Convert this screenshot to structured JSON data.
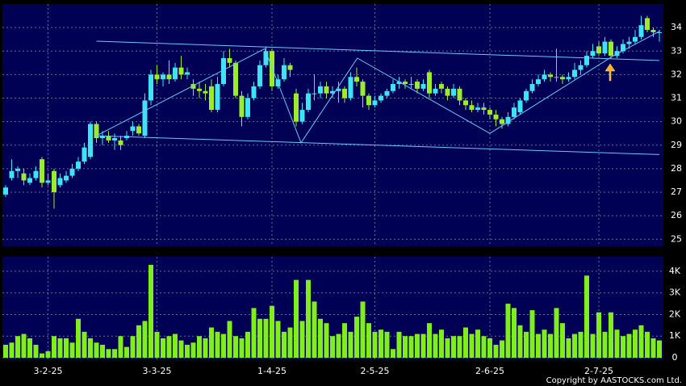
{
  "chart_data": {
    "type": "candlestick",
    "up_color": "#3fe4f4",
    "down_color": "#9aec2c",
    "volume_color": "#80ee1c",
    "line_color": "#6ac8ff",
    "grid": true,
    "open": [
      26.9,
      27.6,
      27.9,
      27.8,
      27.4,
      27.6,
      28.4,
      27.4,
      27.9,
      27.3,
      27.5,
      27.7,
      28.0,
      28.3,
      28.5,
      29.9,
      29.3,
      29.4,
      29.2,
      29.2,
      29.3,
      29.6,
      29.8,
      29.4,
      30.9,
      32.0,
      31.8,
      32.0,
      31.8,
      32.3,
      32.0,
      31.6,
      31.4,
      31.3,
      31.5,
      30.5,
      31.6,
      32.7,
      32.5,
      31.1,
      30.2,
      31.0,
      31.5,
      32.4,
      33.0,
      31.5,
      31.8,
      32.4,
      31.2,
      30.0,
      30.5,
      31.2,
      31.2,
      31.5,
      31.2,
      31.3,
      31.4,
      31.0,
      31.9,
      31.7,
      31.1,
      30.7,
      30.9,
      31.1,
      31.3,
      31.6,
      31.7,
      31.6,
      31.7,
      31.4,
      32.1,
      31.2,
      31.6,
      31.4,
      31.1,
      31.4,
      30.9,
      30.7,
      30.5,
      30.6,
      30.5,
      30.3,
      30.1,
      29.9,
      30.2,
      30.4,
      30.9,
      31.3,
      31.6,
      31.8,
      32.0,
      31.9,
      31.9,
      31.8,
      31.9,
      32.2,
      32.4,
      32.8,
      33.2,
      32.9,
      33.4,
      32.8,
      33.0,
      33.3,
      33.4,
      33.6,
      34.4,
      33.9,
      33.8
    ],
    "high": [
      27.3,
      28.4,
      28.1,
      28.0,
      27.8,
      28.1,
      28.5,
      27.8,
      28.0,
      27.8,
      27.9,
      28.2,
      28.5,
      29.1,
      30.0,
      30.0,
      29.6,
      29.6,
      29.5,
      29.4,
      29.6,
      30.0,
      29.9,
      31.2,
      32.2,
      32.4,
      32.1,
      32.6,
      32.5,
      32.8,
      32.3,
      31.8,
      31.7,
      31.6,
      31.8,
      31.9,
      33.0,
      33.1,
      32.6,
      31.3,
      31.2,
      31.7,
      32.6,
      33.2,
      33.1,
      32.0,
      32.7,
      32.5,
      31.4,
      30.8,
      31.4,
      32.0,
      31.7,
      31.7,
      31.5,
      31.7,
      31.5,
      32.1,
      32.3,
      31.8,
      31.2,
      31.1,
      31.2,
      31.4,
      31.8,
      31.9,
      31.8,
      31.9,
      31.8,
      31.8,
      32.2,
      31.6,
      31.7,
      31.5,
      31.6,
      31.5,
      31.0,
      30.9,
      30.8,
      30.8,
      30.6,
      30.5,
      30.2,
      30.4,
      30.8,
      31.0,
      31.4,
      31.8,
      32.0,
      32.2,
      32.1,
      33.1,
      32.0,
      32.1,
      32.5,
      32.6,
      33.0,
      33.3,
      33.4,
      33.6,
      33.5,
      33.2,
      33.5,
      33.6,
      33.9,
      34.5,
      34.5,
      34.0,
      33.9
    ],
    "low": [
      26.8,
      27.5,
      27.6,
      27.3,
      27.3,
      27.5,
      27.2,
      27.3,
      26.3,
      27.2,
      27.4,
      27.6,
      27.9,
      28.2,
      28.4,
      29.1,
      29.0,
      29.1,
      28.8,
      28.8,
      29.2,
      29.4,
      29.4,
      29.3,
      30.7,
      31.6,
      31.5,
      31.6,
      31.7,
      31.8,
      31.8,
      31.1,
      31.0,
      30.9,
      30.4,
      30.4,
      31.5,
      32.3,
      31.0,
      29.8,
      30.1,
      30.9,
      31.4,
      32.3,
      31.3,
      31.4,
      31.7,
      31.9,
      29.8,
      29.9,
      30.4,
      30.9,
      31.0,
      31.0,
      31.0,
      30.8,
      30.8,
      30.9,
      31.5,
      30.6,
      30.5,
      30.6,
      30.8,
      31.0,
      31.2,
      31.4,
      31.4,
      31.4,
      31.2,
      31.3,
      31.0,
      31.1,
      31.2,
      30.9,
      31.0,
      30.7,
      30.5,
      30.4,
      30.4,
      30.3,
      30.1,
      29.8,
      29.7,
      29.8,
      30.1,
      30.3,
      30.8,
      31.2,
      31.5,
      31.7,
      31.7,
      31.7,
      31.6,
      31.7,
      31.8,
      32.0,
      32.3,
      32.7,
      32.8,
      32.8,
      32.7,
      32.7,
      32.9,
      33.1,
      33.3,
      33.5,
      33.8,
      33.6,
      33.4
    ],
    "close": [
      27.2,
      27.9,
      28.0,
      27.5,
      27.6,
      27.9,
      27.4,
      27.5,
      27.0,
      27.6,
      27.7,
      28.0,
      28.3,
      28.9,
      29.9,
      29.3,
      29.4,
      29.2,
      29.3,
      29.0,
      29.4,
      29.8,
      29.5,
      30.9,
      32.0,
      31.8,
      32.0,
      31.8,
      32.3,
      32.0,
      32.1,
      31.4,
      31.3,
      31.2,
      30.5,
      31.6,
      32.7,
      32.5,
      31.1,
      30.2,
      31.0,
      31.5,
      32.4,
      33.0,
      31.5,
      31.8,
      32.4,
      32.2,
      30.0,
      30.5,
      31.2,
      31.2,
      31.5,
      31.2,
      31.3,
      31.4,
      31.0,
      31.9,
      31.7,
      31.1,
      30.7,
      30.9,
      31.1,
      31.3,
      31.6,
      31.7,
      31.6,
      31.6,
      31.4,
      31.6,
      31.2,
      31.4,
      31.4,
      31.1,
      31.4,
      30.9,
      30.7,
      30.5,
      30.6,
      30.5,
      30.3,
      30.1,
      29.9,
      30.2,
      30.6,
      30.9,
      31.3,
      31.6,
      31.8,
      32.0,
      31.9,
      31.9,
      31.8,
      31.9,
      32.2,
      32.4,
      32.8,
      33.0,
      32.9,
      33.4,
      32.8,
      33.0,
      33.3,
      33.4,
      33.6,
      34.1,
      33.9,
      33.8,
      33.8
    ],
    "volume": [
      600,
      700,
      1000,
      1100,
      900,
      600,
      200,
      300,
      1000,
      900,
      900,
      700,
      1800,
      1200,
      900,
      700,
      600,
      400,
      400,
      1000,
      500,
      1000,
      1500,
      1700,
      4300,
      1200,
      900,
      1000,
      1100,
      800,
      600,
      700,
      1000,
      900,
      1400,
      1200,
      1100,
      1700,
      1000,
      900,
      1200,
      2300,
      1800,
      1800,
      2400,
      1700,
      1200,
      1400,
      3600,
      1700,
      3600,
      2600,
      1800,
      1600,
      1000,
      1100,
      1600,
      1200,
      1900,
      2600,
      1600,
      1200,
      1300,
      1200,
      400,
      1200,
      1000,
      1000,
      1100,
      1100,
      1600,
      1100,
      1300,
      900,
      1000,
      1000,
      1400,
      1100,
      1300,
      1000,
      900,
      600,
      800,
      2500,
      2300,
      1500,
      1200,
      2200,
      1100,
      1300,
      1100,
      2300,
      1600,
      900,
      1100,
      1200,
      3800,
      1100,
      2100,
      1200,
      2100,
      1300,
      1000,
      1100,
      1300,
      1500,
      1200,
      900,
      800
    ],
    "lines": [
      {
        "x": [
          15,
          108
        ],
        "values": [
          33.42,
          32.6
        ]
      },
      {
        "x": [
          15,
          108
        ],
        "values": [
          29.4,
          28.6
        ]
      },
      {
        "x": [
          15,
          42.8,
          48.8,
          58.1,
          80,
          100.4,
          108.1
        ],
        "values": [
          29.4,
          33.1,
          29.1,
          32.7,
          29.5,
          32.8,
          33.85
        ]
      }
    ],
    "xticks": [
      {
        "value": 7,
        "label": "3-2-25"
      },
      {
        "value": 25,
        "label": "3-3-25"
      },
      {
        "value": 44,
        "label": "1-4-25"
      },
      {
        "value": 61,
        "label": "2-5-25"
      },
      {
        "value": 80,
        "label": "2-6-25"
      },
      {
        "value": 98,
        "label": "2-7-25"
      }
    ],
    "ylim": [
      24.7,
      35.0
    ],
    "yticks": [
      25,
      26,
      27,
      28,
      29,
      30,
      31,
      32,
      33,
      34
    ],
    "volume_ylim": [
      0,
      4670
    ],
    "volume_yticks": [
      0,
      {
        "value": 1000,
        "label": "1K"
      },
      {
        "value": 2000,
        "label": "2K"
      },
      {
        "value": 3000,
        "label": "3K"
      },
      {
        "value": 4000,
        "label": "4K"
      }
    ],
    "copyright": "Copyright by AASTOCKS.com Ltd."
  }
}
